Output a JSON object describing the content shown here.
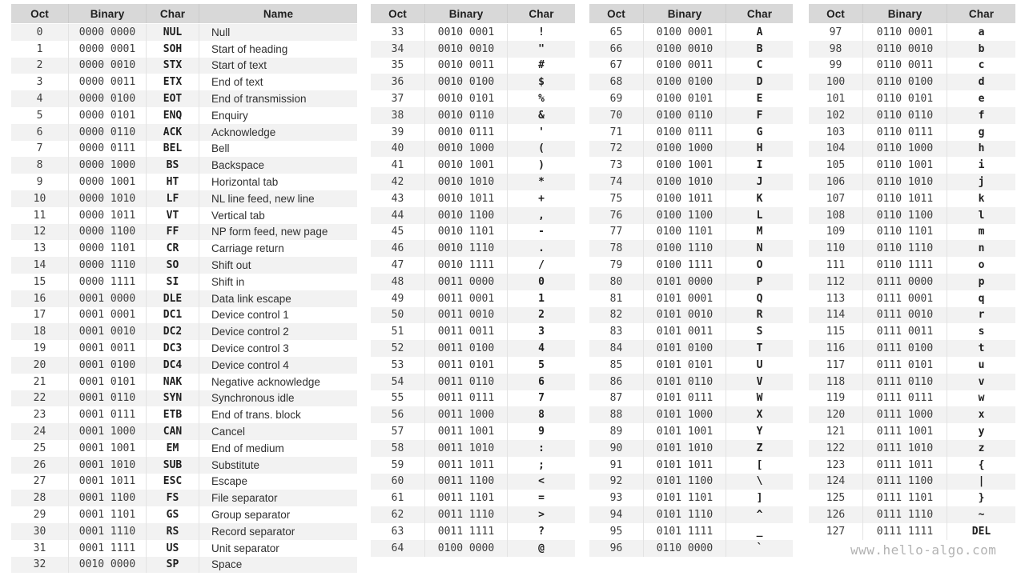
{
  "page": {
    "watermark": "www.hello-algo.com",
    "background": "#ffffff"
  },
  "colors": {
    "header_bg": "#d8d8d8",
    "stripe_bg": "#f2f2f2",
    "white_row": "#ffffff",
    "divider": "#e3e3e3",
    "header_divider": "#cbcbcb",
    "header_text": "#1f1f1f",
    "digit_text": "#3d3d3d",
    "char_text": "#1f1f1f",
    "name_text": "#303030",
    "watermark_text": "#b3b3b3"
  },
  "chart_data": [
    {
      "type": "table",
      "columns": [
        "Oct",
        "Binary",
        "Char",
        "Name"
      ],
      "rows": [
        [
          "0",
          "0000 0000",
          "NUL",
          "Null"
        ],
        [
          "1",
          "0000 0001",
          "SOH",
          "Start of heading"
        ],
        [
          "2",
          "0000 0010",
          "STX",
          "Start of text"
        ],
        [
          "3",
          "0000 0011",
          "ETX",
          "End of text"
        ],
        [
          "4",
          "0000 0100",
          "EOT",
          "End of transmission"
        ],
        [
          "5",
          "0000 0101",
          "ENQ",
          "Enquiry"
        ],
        [
          "6",
          "0000 0110",
          "ACK",
          "Acknowledge"
        ],
        [
          "7",
          "0000 0111",
          "BEL",
          "Bell"
        ],
        [
          "8",
          "0000 1000",
          "BS",
          "Backspace"
        ],
        [
          "9",
          "0000 1001",
          "HT",
          "Horizontal tab"
        ],
        [
          "10",
          "0000 1010",
          "LF",
          "NL line feed, new line"
        ],
        [
          "11",
          "0000 1011",
          "VT",
          "Vertical tab"
        ],
        [
          "12",
          "0000 1100",
          "FF",
          "NP form feed, new page"
        ],
        [
          "13",
          "0000 1101",
          "CR",
          "Carriage return"
        ],
        [
          "14",
          "0000 1110",
          "SO",
          "Shift out"
        ],
        [
          "15",
          "0000 1111",
          "SI",
          "Shift in"
        ],
        [
          "16",
          "0001 0000",
          "DLE",
          "Data link escape"
        ],
        [
          "17",
          "0001 0001",
          "DC1",
          "Device control 1"
        ],
        [
          "18",
          "0001 0010",
          "DC2",
          "Device control 2"
        ],
        [
          "19",
          "0001 0011",
          "DC3",
          "Device control 3"
        ],
        [
          "20",
          "0001 0100",
          "DC4",
          "Device control 4"
        ],
        [
          "21",
          "0001 0101",
          "NAK",
          "Negative acknowledge"
        ],
        [
          "22",
          "0001 0110",
          "SYN",
          "Synchronous idle"
        ],
        [
          "23",
          "0001 0111",
          "ETB",
          "End of trans. block"
        ],
        [
          "24",
          "0001 1000",
          "CAN",
          "Cancel"
        ],
        [
          "25",
          "0001 1001",
          "EM",
          "End of medium"
        ],
        [
          "26",
          "0001 1010",
          "SUB",
          "Substitute"
        ],
        [
          "27",
          "0001 1011",
          "ESC",
          "Escape"
        ],
        [
          "28",
          "0001 1100",
          "FS",
          "File separator"
        ],
        [
          "29",
          "0001 1101",
          "GS",
          "Group separator"
        ],
        [
          "30",
          "0001 1110",
          "RS",
          "Record separator"
        ],
        [
          "31",
          "0001 1111",
          "US",
          "Unit separator"
        ],
        [
          "32",
          "0010 0000",
          "SP",
          "Space"
        ]
      ]
    },
    {
      "type": "table",
      "columns": [
        "Oct",
        "Binary",
        "Char"
      ],
      "rows": [
        [
          "33",
          "0010 0001",
          "!"
        ],
        [
          "34",
          "0010 0010",
          "\""
        ],
        [
          "35",
          "0010 0011",
          "#"
        ],
        [
          "36",
          "0010 0100",
          "$"
        ],
        [
          "37",
          "0010 0101",
          "%"
        ],
        [
          "38",
          "0010 0110",
          "&"
        ],
        [
          "39",
          "0010 0111",
          "'"
        ],
        [
          "40",
          "0010 1000",
          "("
        ],
        [
          "41",
          "0010 1001",
          ")"
        ],
        [
          "42",
          "0010 1010",
          "*"
        ],
        [
          "43",
          "0010 1011",
          "+"
        ],
        [
          "44",
          "0010 1100",
          ","
        ],
        [
          "45",
          "0010 1101",
          "-"
        ],
        [
          "46",
          "0010 1110",
          "."
        ],
        [
          "47",
          "0010 1111",
          "/"
        ],
        [
          "48",
          "0011 0000",
          "0"
        ],
        [
          "49",
          "0011 0001",
          "1"
        ],
        [
          "50",
          "0011 0010",
          "2"
        ],
        [
          "51",
          "0011 0011",
          "3"
        ],
        [
          "52",
          "0011 0100",
          "4"
        ],
        [
          "53",
          "0011 0101",
          "5"
        ],
        [
          "54",
          "0011 0110",
          "6"
        ],
        [
          "55",
          "0011 0111",
          "7"
        ],
        [
          "56",
          "0011 1000",
          "8"
        ],
        [
          "57",
          "0011 1001",
          "9"
        ],
        [
          "58",
          "0011 1010",
          ":"
        ],
        [
          "59",
          "0011 1011",
          ";"
        ],
        [
          "60",
          "0011 1100",
          "<"
        ],
        [
          "61",
          "0011 1101",
          "="
        ],
        [
          "62",
          "0011 1110",
          ">"
        ],
        [
          "63",
          "0011 1111",
          "?"
        ],
        [
          "64",
          "0100 0000",
          "@"
        ]
      ]
    },
    {
      "type": "table",
      "columns": [
        "Oct",
        "Binary",
        "Char"
      ],
      "rows": [
        [
          "65",
          "0100 0001",
          "A"
        ],
        [
          "66",
          "0100 0010",
          "B"
        ],
        [
          "67",
          "0100 0011",
          "C"
        ],
        [
          "68",
          "0100 0100",
          "D"
        ],
        [
          "69",
          "0100 0101",
          "E"
        ],
        [
          "70",
          "0100 0110",
          "F"
        ],
        [
          "71",
          "0100 0111",
          "G"
        ],
        [
          "72",
          "0100 1000",
          "H"
        ],
        [
          "73",
          "0100 1001",
          "I"
        ],
        [
          "74",
          "0100 1010",
          "J"
        ],
        [
          "75",
          "0100 1011",
          "K"
        ],
        [
          "76",
          "0100 1100",
          "L"
        ],
        [
          "77",
          "0100 1101",
          "M"
        ],
        [
          "78",
          "0100 1110",
          "N"
        ],
        [
          "79",
          "0100 1111",
          "O"
        ],
        [
          "80",
          "0101 0000",
          "P"
        ],
        [
          "81",
          "0101 0001",
          "Q"
        ],
        [
          "82",
          "0101 0010",
          "R"
        ],
        [
          "83",
          "0101 0011",
          "S"
        ],
        [
          "84",
          "0101 0100",
          "T"
        ],
        [
          "85",
          "0101 0101",
          "U"
        ],
        [
          "86",
          "0101 0110",
          "V"
        ],
        [
          "87",
          "0101 0111",
          "W"
        ],
        [
          "88",
          "0101 1000",
          "X"
        ],
        [
          "89",
          "0101 1001",
          "Y"
        ],
        [
          "90",
          "0101 1010",
          "Z"
        ],
        [
          "91",
          "0101 1011",
          "["
        ],
        [
          "92",
          "0101 1100",
          "\\"
        ],
        [
          "93",
          "0101 1101",
          "]"
        ],
        [
          "94",
          "0101 1110",
          "^"
        ],
        [
          "95",
          "0101 1111",
          "_"
        ],
        [
          "96",
          "0110 0000",
          "`"
        ]
      ]
    },
    {
      "type": "table",
      "columns": [
        "Oct",
        "Binary",
        "Char"
      ],
      "rows": [
        [
          "97",
          "0110 0001",
          "a"
        ],
        [
          "98",
          "0110 0010",
          "b"
        ],
        [
          "99",
          "0110 0011",
          "c"
        ],
        [
          "100",
          "0110 0100",
          "d"
        ],
        [
          "101",
          "0110 0101",
          "e"
        ],
        [
          "102",
          "0110 0110",
          "f"
        ],
        [
          "103",
          "0110 0111",
          "g"
        ],
        [
          "104",
          "0110 1000",
          "h"
        ],
        [
          "105",
          "0110 1001",
          "i"
        ],
        [
          "106",
          "0110 1010",
          "j"
        ],
        [
          "107",
          "0110 1011",
          "k"
        ],
        [
          "108",
          "0110 1100",
          "l"
        ],
        [
          "109",
          "0110 1101",
          "m"
        ],
        [
          "110",
          "0110 1110",
          "n"
        ],
        [
          "111",
          "0110 1111",
          "o"
        ],
        [
          "112",
          "0111 0000",
          "p"
        ],
        [
          "113",
          "0111 0001",
          "q"
        ],
        [
          "114",
          "0111 0010",
          "r"
        ],
        [
          "115",
          "0111 0011",
          "s"
        ],
        [
          "116",
          "0111 0100",
          "t"
        ],
        [
          "117",
          "0111 0101",
          "u"
        ],
        [
          "118",
          "0111 0110",
          "v"
        ],
        [
          "119",
          "0111 0111",
          "w"
        ],
        [
          "120",
          "0111 1000",
          "x"
        ],
        [
          "121",
          "0111 1001",
          "y"
        ],
        [
          "122",
          "0111 1010",
          "z"
        ],
        [
          "123",
          "0111 1011",
          "{"
        ],
        [
          "124",
          "0111 1100",
          "|"
        ],
        [
          "125",
          "0111 1101",
          "}"
        ],
        [
          "126",
          "0111 1110",
          "~"
        ],
        [
          "127",
          "0111 1111",
          "DEL"
        ]
      ]
    }
  ]
}
